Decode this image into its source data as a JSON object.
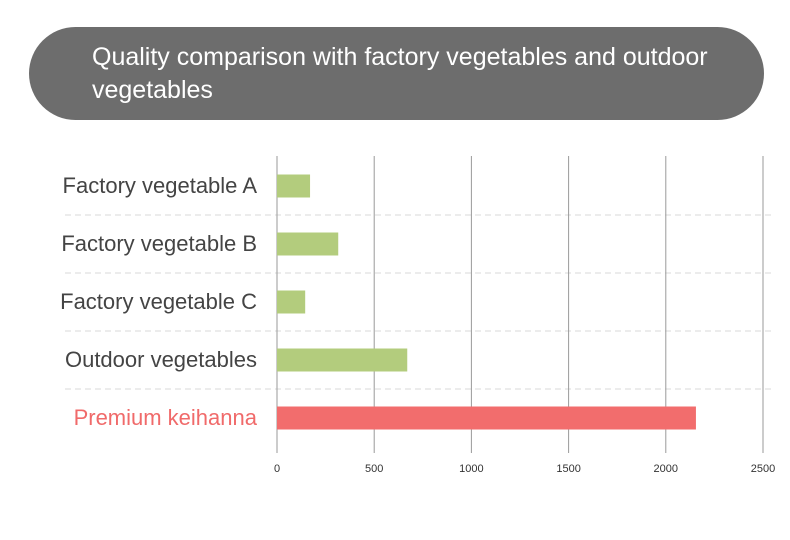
{
  "colors": {
    "title_bg": "#6d6d6d",
    "bar_default": "#b3cc7d",
    "bar_highlight": "#f26d6d",
    "label_default": "#444444",
    "label_highlight": "#f06a6a",
    "gridline": "#9a9a9a",
    "row_separator": "#d8d8d8"
  },
  "chart_data": {
    "type": "bar",
    "orientation": "horizontal",
    "title": "Quality comparison with factory vegetables and outdoor vegetables",
    "categories": [
      "Factory vegetable A",
      "Factory vegetable B",
      "Factory vegetable C",
      "Outdoor vegetables",
      "Premium keihanna"
    ],
    "values": [
      170,
      315,
      145,
      670,
      2155
    ],
    "highlight_index": 4,
    "xlim": [
      0,
      2500
    ],
    "xticks": [
      0,
      500,
      1000,
      1500,
      2000,
      2500
    ],
    "xlabel": "",
    "ylabel": "",
    "grid": true
  }
}
